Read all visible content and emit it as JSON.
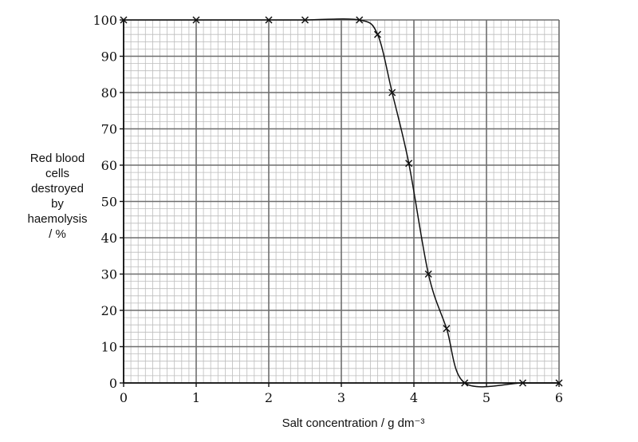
{
  "chart_data": {
    "type": "line",
    "title": "",
    "xlabel": "Salt concentration / g dm⁻³",
    "ylabel_lines": [
      "Red blood",
      "cells",
      "destroyed",
      "by",
      "haemolysis",
      "/ %"
    ],
    "xlim": [
      0,
      6
    ],
    "ylim": [
      0,
      100
    ],
    "x_ticks": [
      0,
      1,
      2,
      3,
      4,
      5,
      6
    ],
    "y_ticks": [
      0,
      10,
      20,
      30,
      40,
      50,
      60,
      70,
      80,
      90,
      100
    ],
    "x_tick_labels": [
      "0",
      "1",
      "2",
      "3",
      "4",
      "5",
      "6"
    ],
    "y_tick_labels": [
      "0",
      "10",
      "20",
      "30",
      "40",
      "50",
      "60",
      "70",
      "80",
      "90",
      "100"
    ],
    "grid": true,
    "series": [
      {
        "points": [
          {
            "x": 0,
            "y": 100
          },
          {
            "x": 1,
            "y": 100
          },
          {
            "x": 2,
            "y": 100
          },
          {
            "x": 2.5,
            "y": 100
          },
          {
            "x": 3.25,
            "y": 100
          },
          {
            "x": 3.5,
            "y": 96
          },
          {
            "x": 3.7,
            "y": 80
          },
          {
            "x": 3.93,
            "y": 60.5
          },
          {
            "x": 4.2,
            "y": 30
          },
          {
            "x": 4.45,
            "y": 15
          },
          {
            "x": 4.7,
            "y": 0
          },
          {
            "x": 5.5,
            "y": 0
          },
          {
            "x": 6,
            "y": 0
          }
        ]
      }
    ],
    "colors": {
      "grid_minor": "#bdbdbd",
      "grid_major": "#6e6e6e",
      "line": "#111111"
    }
  }
}
